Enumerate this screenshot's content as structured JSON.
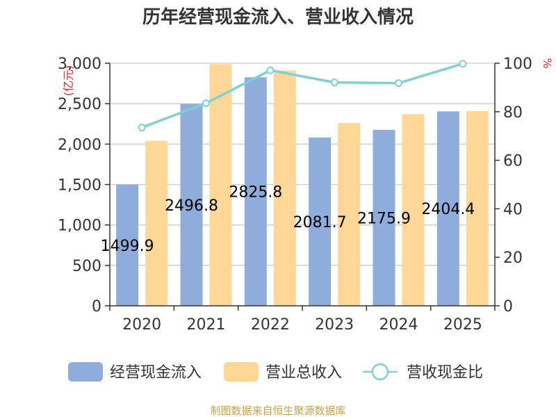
{
  "chart_data": {
    "type": "bar",
    "title": "历年经营现金流入、营业收入情况",
    "categories": [
      "2020",
      "2021",
      "2022",
      "2023",
      "2024",
      "2025"
    ],
    "series": [
      {
        "name": "经营现金流入",
        "axis": "left",
        "kind": "bar",
        "color": "#8eaddb",
        "values": [
          1499.9,
          2496.8,
          2825.8,
          2081.7,
          2175.9,
          2404.4
        ],
        "labels": [
          "1499.9",
          "2496.8",
          "2825.8",
          "2081.7",
          "2175.9",
          "2404.4"
        ]
      },
      {
        "name": "营业总收入",
        "axis": "left",
        "kind": "bar",
        "color": "#ffd898",
        "values": [
          2040,
          2990,
          2910,
          2260,
          2370,
          2410
        ]
      },
      {
        "name": "营收现金比",
        "axis": "right",
        "kind": "line",
        "color": "#7fcfd4",
        "values": [
          73.5,
          83.5,
          97.1,
          92.1,
          91.8,
          99.8
        ]
      }
    ],
    "y_left": {
      "label": "亿元",
      "min": 0,
      "max": 3000,
      "ticks": [
        0,
        500,
        1000,
        1500,
        2000,
        2500,
        3000
      ],
      "tick_labels": [
        "0",
        "500",
        "1,000",
        "1,500",
        "2,000",
        "2,500",
        "3,000"
      ]
    },
    "y_right": {
      "label": "%",
      "min": 0,
      "max": 100,
      "ticks": [
        0,
        20,
        40,
        60,
        80,
        100
      ],
      "tick_labels": [
        "0",
        "20",
        "40",
        "60",
        "80",
        "100"
      ]
    },
    "grid": true,
    "legend_position": "bottom",
    "source": "制图数据来自恒生聚源数据库"
  }
}
